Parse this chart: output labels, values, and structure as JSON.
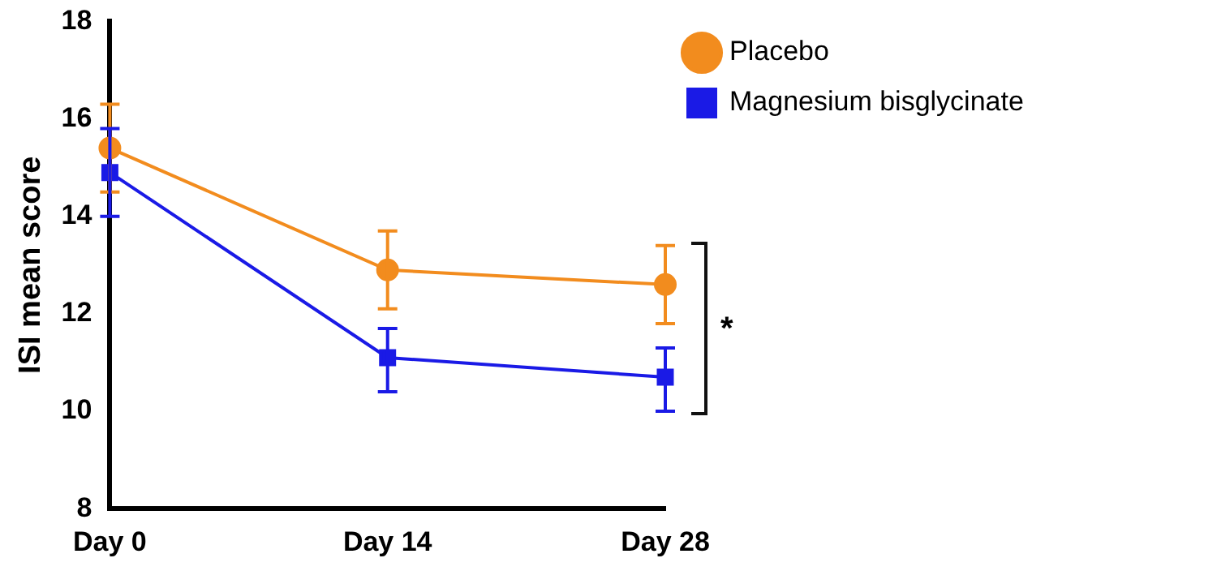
{
  "chart_data": {
    "type": "line",
    "ylabel": "ISI mean score",
    "categories": [
      "Day 0",
      "Day 14",
      "Day 28"
    ],
    "series": [
      {
        "name": "Placebo",
        "color": "#f28c1e",
        "values": [
          15.4,
          12.9,
          12.6
        ],
        "errors": [
          [
            14.5,
            16.3
          ],
          [
            12.1,
            13.7
          ],
          [
            11.8,
            13.4
          ]
        ],
        "marker": "circle"
      },
      {
        "name": "Magnesium bisglycinate",
        "color": "#1a1ae6",
        "values": [
          14.9,
          11.1,
          10.7
        ],
        "errors": [
          [
            14.0,
            15.8
          ],
          [
            10.4,
            11.7
          ],
          [
            10.0,
            11.3
          ]
        ],
        "marker": "square"
      }
    ],
    "ylim": [
      8,
      18
    ],
    "yticks": [
      8,
      10,
      12,
      14,
      16,
      18
    ],
    "grid": false,
    "legend": "top right",
    "annotations": [
      "*"
    ]
  }
}
